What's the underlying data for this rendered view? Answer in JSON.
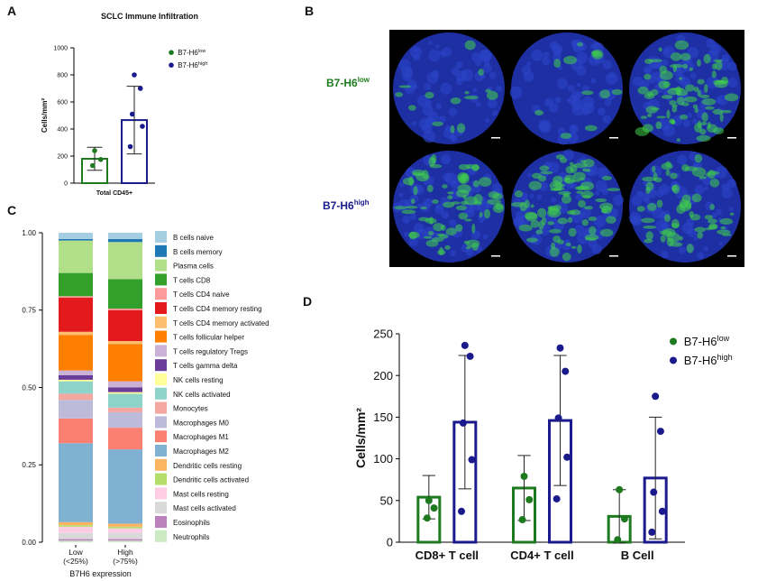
{
  "panels": [
    "A",
    "B",
    "C",
    "D"
  ],
  "images": {
    "row_labels": [
      {
        "text": "B7-H6",
        "superscript": "low",
        "color": "#1e7a1e"
      },
      {
        "text": "B7-H6",
        "superscript": "high",
        "color": "#1a1a8c"
      }
    ]
  },
  "chart_data": [
    {
      "type": "bar",
      "title": "SCLC Immune Infiltration",
      "y_label": "Cells/mm²",
      "categories": [
        "Total CD45+"
      ],
      "ylim": [
        0,
        1000
      ],
      "yticks": [
        0,
        200,
        400,
        600,
        800,
        1000
      ],
      "series": [
        {
          "name": "B7-H6",
          "superscript": "low",
          "color": "#1e7a1e",
          "values": [
            180
          ],
          "errors": [
            85
          ],
          "points": [
            [
              240,
              175,
              130
            ]
          ]
        },
        {
          "name": "B7-H6",
          "superscript": "high",
          "color": "#1a1a8c",
          "values": [
            466
          ],
          "errors": [
            250
          ],
          "points": [
            [
              800,
              700,
              510,
              420,
              270
            ]
          ]
        }
      ]
    },
    {
      "type": "stacked_bar",
      "categories": [
        [
          "Low",
          "(<25%)"
        ],
        [
          "High",
          "(>75%)"
        ]
      ],
      "x_label": "B7H6 expression",
      "ylim": [
        0,
        1
      ],
      "yticks": [
        {
          "value": 0,
          "label": "0.00"
        },
        {
          "value": 0.25,
          "label": "0.25"
        },
        {
          "value": 0.5,
          "label": "0.50"
        },
        {
          "value": 0.75,
          "label": "0.75"
        },
        {
          "value": 1,
          "label": "1.00"
        }
      ],
      "series": [
        {
          "name": "B cells naive",
          "color": "#a6cee3",
          "values": [
            0.02,
            0.02
          ]
        },
        {
          "name": "B cells memory",
          "color": "#1f78b4",
          "values": [
            0.005,
            0.01
          ]
        },
        {
          "name": "Plasma cells",
          "color": "#b2df8a",
          "values": [
            0.105,
            0.12
          ]
        },
        {
          "name": "T cells CD8",
          "color": "#33a02c",
          "values": [
            0.075,
            0.095
          ]
        },
        {
          "name": "T cells CD4 naive",
          "color": "#fb9a99",
          "values": [
            0.005,
            0.005
          ]
        },
        {
          "name": "T cells CD4 memory resting",
          "color": "#e31a1c",
          "values": [
            0.11,
            0.1
          ]
        },
        {
          "name": "T cells CD4 memory activated",
          "color": "#fdbf6f",
          "values": [
            0.01,
            0.01
          ]
        },
        {
          "name": "T cells follicular helper",
          "color": "#ff7f00",
          "values": [
            0.115,
            0.12
          ]
        },
        {
          "name": "T cells regulatory  Tregs",
          "color": "#cab2d6",
          "values": [
            0.015,
            0.02
          ]
        },
        {
          "name": "T cells gamma delta",
          "color": "#6a3d9a",
          "values": [
            0.015,
            0.015
          ]
        },
        {
          "name": "NK cells resting",
          "color": "#ffff99",
          "values": [
            0.005,
            0.005
          ]
        },
        {
          "name": "NK cells activated",
          "color": "#8dd3c7",
          "values": [
            0.04,
            0.045
          ]
        },
        {
          "name": "Monocytes",
          "color": "#f4a6a0",
          "values": [
            0.02,
            0.015
          ]
        },
        {
          "name": "Macrophages M0",
          "color": "#bebada",
          "values": [
            0.06,
            0.05
          ]
        },
        {
          "name": "Macrophages M1",
          "color": "#fb8072",
          "values": [
            0.08,
            0.07
          ]
        },
        {
          "name": "Macrophages M2",
          "color": "#80b1d3",
          "values": [
            0.255,
            0.24
          ]
        },
        {
          "name": "Dendritic cells resting",
          "color": "#fdb462",
          "values": [
            0.01,
            0.01
          ]
        },
        {
          "name": "Dendritic cells activated",
          "color": "#b3de69",
          "values": [
            0.005,
            0.005
          ]
        },
        {
          "name": "Mast cells resting",
          "color": "#fccde5",
          "values": [
            0.02,
            0.015
          ]
        },
        {
          "name": "Mast cells activated",
          "color": "#d9d9d9",
          "values": [
            0.02,
            0.02
          ]
        },
        {
          "name": "Eosinophils",
          "color": "#bc80bd",
          "values": [
            0.005,
            0.005
          ]
        },
        {
          "name": "Neutrophils",
          "color": "#ccebc5",
          "values": [
            0.005,
            0.005
          ]
        }
      ]
    },
    {
      "type": "bar",
      "y_label": "Cells/mm²",
      "categories": [
        "CD8+ T cell",
        "CD4+ T cell",
        "B Cell"
      ],
      "ylim": [
        0,
        250
      ],
      "yticks": [
        0,
        50,
        100,
        150,
        200,
        250
      ],
      "series": [
        {
          "name": "B7-H6",
          "superscript": "low",
          "color": "#1e7a1e",
          "values": [
            54,
            65,
            31
          ],
          "errors": [
            26,
            39,
            32
          ],
          "points": [
            [
              50,
              41,
              29
            ],
            [
              79,
              51,
              27
            ],
            [
              63,
              28,
              3
            ]
          ]
        },
        {
          "name": "B7-H6",
          "superscript": "high",
          "color": "#1a1a8c",
          "values": [
            144,
            146,
            77
          ],
          "errors": [
            80,
            78,
            73
          ],
          "points": [
            [
              236,
              223,
              143,
              99,
              37
            ],
            [
              233,
              205,
              149,
              102,
              52
            ],
            [
              175,
              133,
              60,
              37,
              12
            ]
          ]
        }
      ]
    }
  ]
}
